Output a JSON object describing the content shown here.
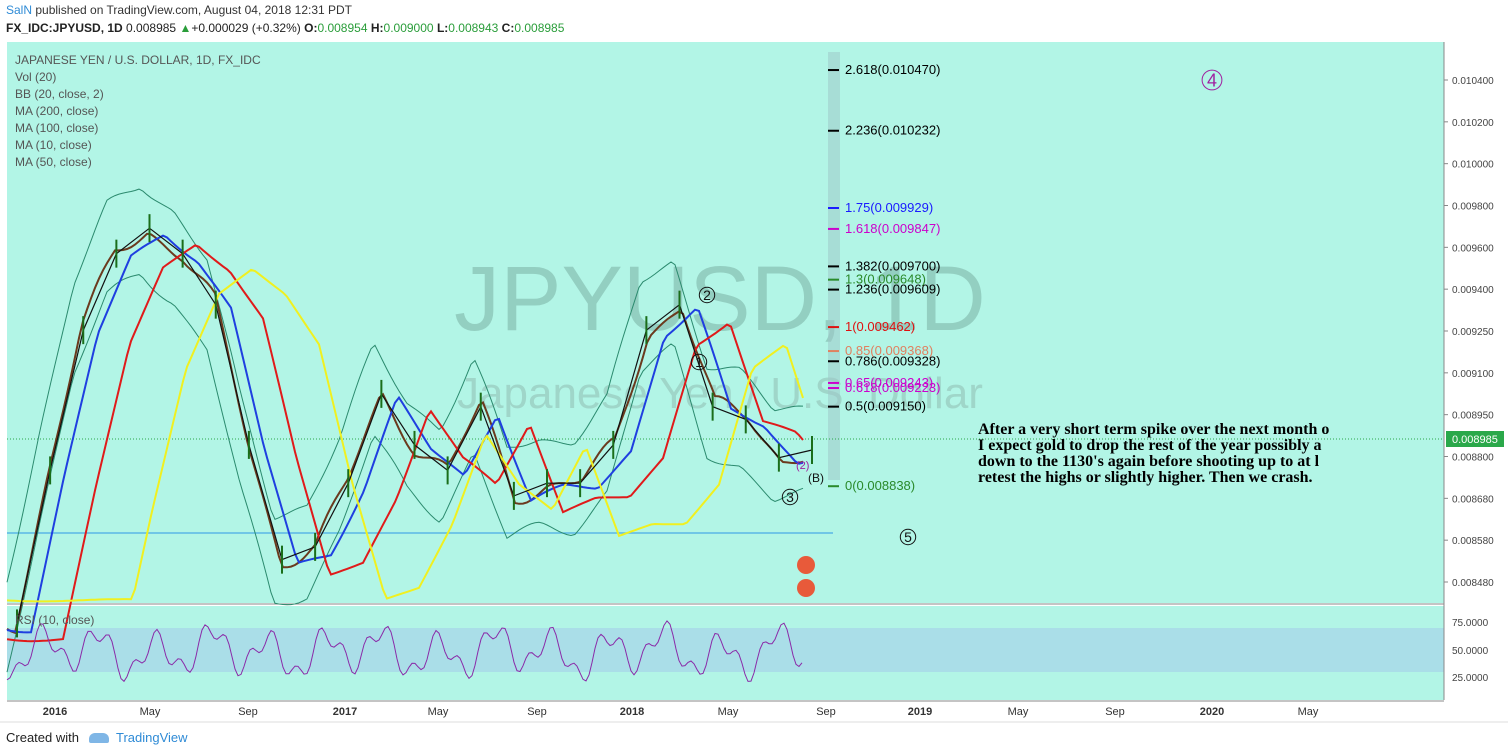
{
  "header": {
    "user": "SalN",
    "published": " published on TradingView.com, August 04, 2018 12:31 PDT",
    "symbol": "FX_IDC:JPYUSD, 1D",
    "last": "0.008985",
    "change": "+0.000029 (+0.32%)",
    "o_label": "O:",
    "o": "0.008954",
    "h_label": "H:",
    "h": "0.009000",
    "l_label": "L:",
    "l": "0.008943",
    "c_label": "C:",
    "c": "0.008985"
  },
  "legend": {
    "title": "JAPANESE YEN / U.S. DOLLAR, 1D, FX_IDC",
    "items": [
      "Vol (20)",
      "BB (20, close, 2)",
      "MA (200, close)",
      "MA (100, close)",
      "MA (10, close)",
      "MA (50, close)"
    ]
  },
  "watermark": {
    "big": "JPYUSD, 1D",
    "small": "Japanese Yen / U.S. Dollar"
  },
  "annotation": {
    "lines": [
      "After a very short term spike over the next month o",
      "I expect gold to drop the rest of the year possibly a",
      " down to the 1130's again before shooting up to at l",
      "retest the highs or slightly higher.  Then we crash."
    ]
  },
  "wave_labels": [
    "4",
    "2",
    "1",
    "3",
    "5",
    "(B)",
    "(2)"
  ],
  "fib_levels": [
    {
      "label": "2.618(0.010470)",
      "value": 0.01047,
      "color": "#000000"
    },
    {
      "label": "2.236(0.010232)",
      "value": 0.010232,
      "color": "#000000"
    },
    {
      "label": "1.75(0.009929)",
      "value": 0.009929,
      "color": "#1a1aff"
    },
    {
      "label": "1.618(0.009847)",
      "value": 0.009847,
      "color": "#cc00cc"
    },
    {
      "label": "1.382(0.009700)",
      "value": 0.0097,
      "color": "#000000"
    },
    {
      "label": "1.3(0.009648)",
      "value": 0.009648,
      "color": "#2a8a2a"
    },
    {
      "label": "1.236(0.009609)",
      "value": 0.009609,
      "color": "#000000"
    },
    {
      "label": "1(0.009462)",
      "value": 0.009462,
      "color": "#e01010"
    },
    {
      "label": "0.85(0.009368)",
      "value": 0.009368,
      "color": "#e08060"
    },
    {
      "label": "0.786(0.009328)",
      "value": 0.009328,
      "color": "#000000"
    },
    {
      "label": "0.65(0.009243)",
      "value": 0.009243,
      "color": "#cc00cc"
    },
    {
      "label": "0.618(0.009223)",
      "value": 0.009223,
      "color": "#cc00cc"
    },
    {
      "label": "0.5(0.009150)",
      "value": 0.00915,
      "color": "#000000"
    },
    {
      "label": "0(0.008838)",
      "value": 0.008838,
      "color": "#2a8a2a"
    }
  ],
  "price_axis": {
    "ticks": [
      "0.010400",
      "0.010200",
      "0.010000",
      "0.009800",
      "0.009600",
      "0.009400",
      "0.009250",
      "0.009100",
      "0.008950",
      "0.008800",
      "0.008680",
      "0.008580",
      "0.008480"
    ],
    "current": "0.008985"
  },
  "rsi": {
    "label": "RSI (10, close)",
    "ticks": [
      "75.0000",
      "50.0000",
      "25.0000"
    ]
  },
  "time_axis": {
    "ticks": [
      "2016",
      "May",
      "Sep",
      "2017",
      "May",
      "Sep",
      "2018",
      "May",
      "Sep",
      "2019",
      "May",
      "Sep",
      "2020",
      "May"
    ]
  },
  "chart_data": {
    "type": "line",
    "title": "JAPANESE YEN / U.S. DOLLAR, 1D, FX_IDC",
    "xlabel": "",
    "ylabel": "",
    "ylim": [
      0.00838,
      0.01058
    ],
    "x": [
      "2016-01",
      "2016-03",
      "2016-05",
      "2016-06",
      "2016-08",
      "2016-09",
      "2016-10",
      "2016-11",
      "2016-12",
      "2017-01",
      "2017-03",
      "2017-04",
      "2017-06",
      "2017-07",
      "2017-09",
      "2017-10",
      "2017-11",
      "2017-12",
      "2018-01",
      "2018-03",
      "2018-04",
      "2018-05",
      "2018-06",
      "2018-07",
      "2018-08"
    ],
    "series": [
      {
        "name": "JPYUSD",
        "color": "#111111",
        "values": [
          0.0083,
          0.0089,
          0.00945,
          0.00975,
          0.00985,
          0.00975,
          0.00955,
          0.009,
          0.00855,
          0.0086,
          0.00885,
          0.0092,
          0.009,
          0.0089,
          0.00915,
          0.0088,
          0.00885,
          0.00885,
          0.009,
          0.00945,
          0.00955,
          0.00915,
          0.0091,
          0.00895,
          0.00898
        ]
      }
    ]
  },
  "footer": {
    "prefix": "Created with",
    "brand": "TradingView"
  }
}
